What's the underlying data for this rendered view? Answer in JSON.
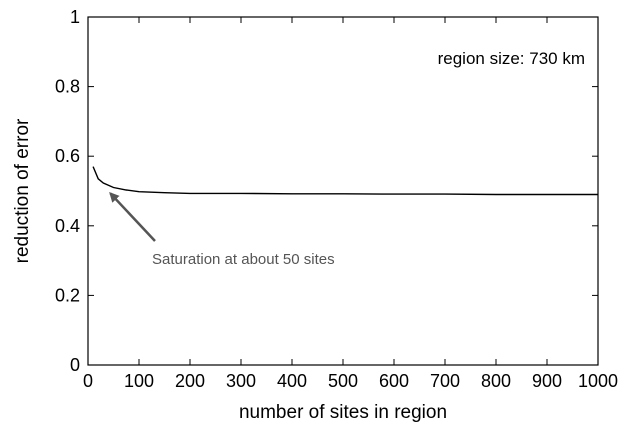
{
  "chart_data": {
    "type": "line",
    "xlabel": "number of sites in region",
    "ylabel": "reduction of error",
    "xlim": [
      0,
      1000
    ],
    "ylim": [
      0,
      1
    ],
    "x_ticks": [
      "0",
      "100",
      "200",
      "300",
      "400",
      "500",
      "600",
      "700",
      "800",
      "900",
      "1000"
    ],
    "y_ticks": [
      "0",
      "0.2",
      "0.4",
      "0.6",
      "0.8",
      "1"
    ],
    "grid": false,
    "series": [
      {
        "x": [
          10,
          20,
          30,
          50,
          75,
          100,
          150,
          200,
          300,
          400,
          500,
          600,
          700,
          800,
          900,
          1000
        ],
        "y": [
          0.57,
          0.535,
          0.523,
          0.51,
          0.503,
          0.498,
          0.495,
          0.493,
          0.493,
          0.492,
          0.492,
          0.491,
          0.491,
          0.49,
          0.49,
          0.49
        ],
        "color": "#000000"
      }
    ],
    "annotations": {
      "region_label": "region size: 730 km",
      "saturation_label": "Saturation at about 50 sites",
      "arrow_color": "#555555",
      "arrow_target": {
        "x": 50,
        "y": 0.51
      }
    }
  }
}
